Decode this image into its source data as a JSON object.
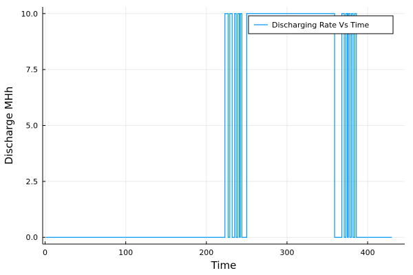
{
  "chart_data": {
    "type": "line",
    "title": "",
    "xlabel": "Time",
    "ylabel": "Discharge MHh",
    "xlim": [
      -3,
      446
    ],
    "ylim": [
      -0.3,
      10.3
    ],
    "x_ticks": [
      0,
      100,
      200,
      300,
      400
    ],
    "x_tick_labels": [
      "0",
      "100",
      "200",
      "300",
      "400"
    ],
    "y_ticks": [
      0,
      2.5,
      5,
      7.5,
      10
    ],
    "y_tick_labels": [
      "0.0",
      "2.5",
      "5.0",
      "7.5",
      "10.0"
    ],
    "grid": true,
    "legend_position": "top-right",
    "step": true,
    "series": [
      {
        "name": "Discharging Rate Vs Time",
        "color": "#009af9",
        "x": [
          1,
          223,
          227,
          229,
          232,
          235,
          237,
          239,
          241,
          242,
          244,
          250,
          359,
          368,
          371,
          373,
          375,
          376,
          378,
          380,
          382,
          384,
          386,
          430
        ],
        "y": [
          0,
          10,
          0,
          10,
          0,
          10,
          0,
          10,
          0,
          10,
          0,
          10,
          0,
          10,
          0,
          10,
          0,
          10,
          0,
          10,
          0,
          10,
          0,
          0
        ]
      }
    ]
  }
}
